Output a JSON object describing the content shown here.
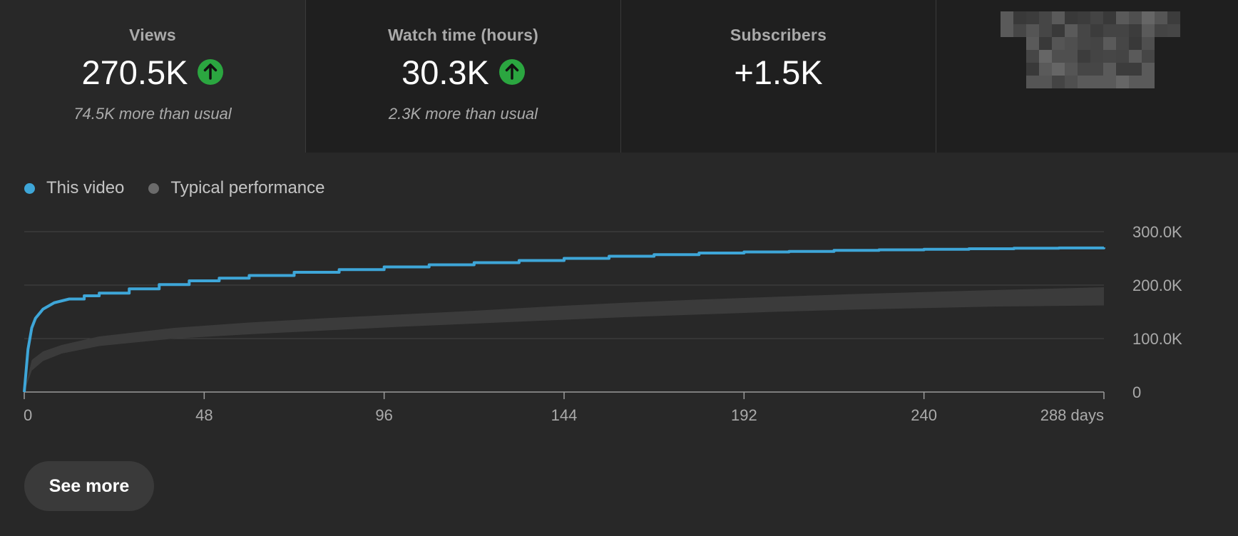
{
  "metrics": [
    {
      "title": "Views",
      "value": "270.5K",
      "note": "74.5K more than usual",
      "trend": "up"
    },
    {
      "title": "Watch time (hours)",
      "value": "30.3K",
      "note": "2.3K more than usual",
      "trend": "up"
    },
    {
      "title": "Subscribers",
      "value": "+1.5K",
      "note": "",
      "trend": ""
    }
  ],
  "colors": {
    "this_video": "#3ea6d8",
    "typical": "#6b6b6b",
    "typical_band": "#3b3b3b",
    "trend_up": "#2ba640"
  },
  "legend": {
    "this_video": "This video",
    "typical": "Typical performance"
  },
  "chart_data": {
    "type": "line",
    "x_unit": "days",
    "xlim": [
      0,
      288
    ],
    "ylim": [
      0,
      300000
    ],
    "x_ticks": [
      "0",
      "48",
      "96",
      "144",
      "192",
      "240",
      "288 days"
    ],
    "y_ticks": [
      "300.0K",
      "200.0K",
      "100.0K",
      "0"
    ],
    "series": [
      {
        "name": "This video",
        "x": [
          0,
          1,
          2,
          3,
          5,
          8,
          12,
          16,
          20,
          28,
          36,
          44,
          52,
          60,
          72,
          84,
          96,
          108,
          120,
          132,
          144,
          156,
          168,
          180,
          192,
          204,
          216,
          228,
          240,
          252,
          264,
          276,
          288
        ],
        "y": [
          0,
          80000,
          120000,
          138000,
          155000,
          167000,
          174000,
          180000,
          185000,
          193000,
          201000,
          208000,
          213000,
          218000,
          224000,
          229000,
          234000,
          238000,
          242000,
          246000,
          250000,
          254000,
          257000,
          260000,
          262000,
          263000,
          265000,
          266000,
          267000,
          268000,
          269000,
          269500,
          270500
        ]
      }
    ],
    "typical_band": {
      "name": "Typical performance",
      "x": [
        0,
        2,
        5,
        10,
        20,
        40,
        60,
        80,
        100,
        120,
        140,
        160,
        180,
        200,
        220,
        240,
        260,
        288
      ],
      "lower": [
        0,
        40000,
        58000,
        72000,
        86000,
        100000,
        108000,
        115000,
        122000,
        128000,
        134000,
        140000,
        145000,
        150000,
        154000,
        157000,
        160000,
        162000
      ],
      "upper": [
        0,
        60000,
        76000,
        88000,
        104000,
        120000,
        130000,
        138000,
        145000,
        152000,
        160000,
        167000,
        173000,
        178000,
        183000,
        187000,
        191000,
        196000
      ]
    }
  },
  "actions": {
    "see_more": "See more"
  }
}
